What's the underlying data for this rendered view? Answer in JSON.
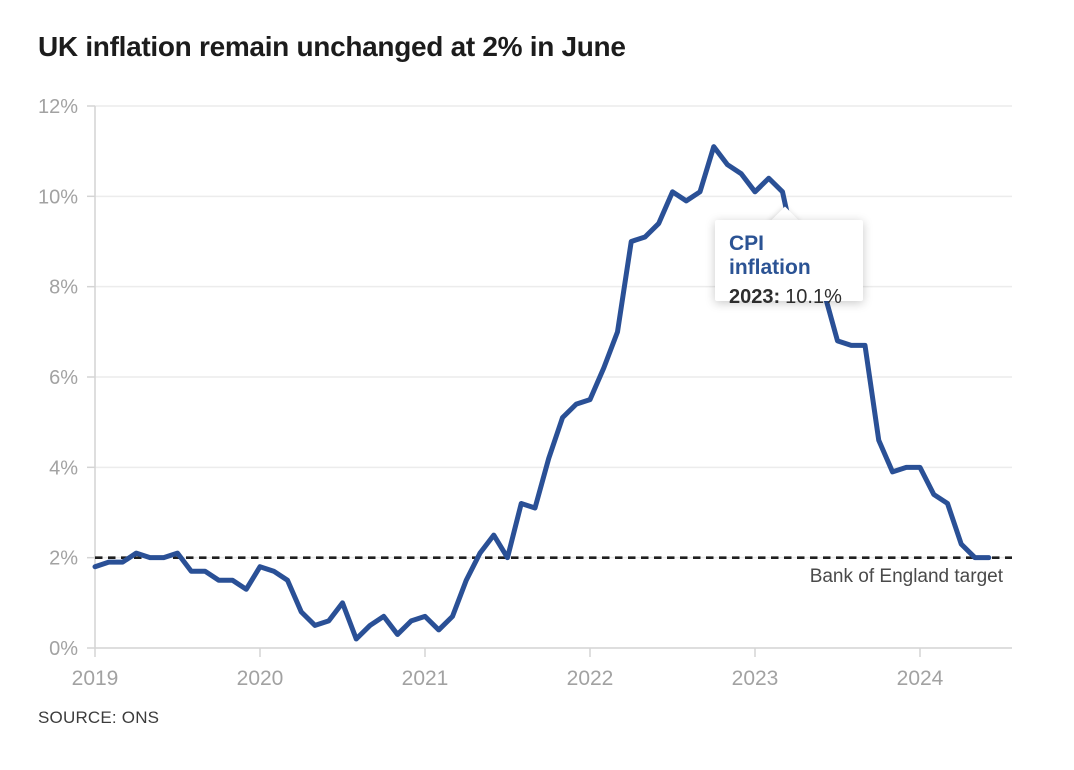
{
  "header": {
    "title": "UK inflation remain unchanged at 2% in June"
  },
  "source": {
    "label": "SOURCE: ONS"
  },
  "tooltip": {
    "series_label": "CPI inflation",
    "year_label": "2023:",
    "value_label": "10.1%"
  },
  "target": {
    "label": "Bank of England target",
    "value": 2
  },
  "colors": {
    "line": "#2a5096",
    "tooltip_title": "#2b5394",
    "target_line": "#1f1f1f",
    "axis_label": "#a2a2a2",
    "gridline": "#ececec",
    "axis_line": "#d4d4d4",
    "title_text": "#1c1c1c"
  },
  "chart_data": {
    "type": "line",
    "title": "UK inflation remain unchanged at 2% in June",
    "xlabel": "",
    "ylabel": "",
    "ylim": [
      0,
      12
    ],
    "y_ticks": [
      0,
      2,
      4,
      6,
      8,
      10,
      12
    ],
    "y_tick_labels": [
      "0%",
      "2%",
      "4%",
      "6%",
      "8%",
      "10%",
      "12%"
    ],
    "x_tick_labels": [
      "2019",
      "2020",
      "2021",
      "2022",
      "2023",
      "2024"
    ],
    "grid": "horizontal",
    "legend": "none",
    "target_line": {
      "value": 2,
      "label": "Bank of England target",
      "style": "dashed"
    },
    "series": [
      {
        "name": "CPI inflation",
        "start_month": "2019-01",
        "end_month": "2024-06",
        "frequency": "monthly",
        "values": [
          1.8,
          1.9,
          1.9,
          2.1,
          2.0,
          2.0,
          2.1,
          1.7,
          1.7,
          1.5,
          1.5,
          1.3,
          1.8,
          1.7,
          1.5,
          0.8,
          0.5,
          0.6,
          1.0,
          0.2,
          0.5,
          0.7,
          0.3,
          0.6,
          0.7,
          0.4,
          0.7,
          1.5,
          2.1,
          2.5,
          2.0,
          3.2,
          3.1,
          4.2,
          5.1,
          5.4,
          5.5,
          6.2,
          7.0,
          9.0,
          9.1,
          9.4,
          10.1,
          9.9,
          10.1,
          11.1,
          10.7,
          10.5,
          10.1,
          10.4,
          10.1,
          8.7,
          8.7,
          7.9,
          6.8,
          6.7,
          6.7,
          4.6,
          3.9,
          4.0,
          4.0,
          3.4,
          3.2,
          2.3,
          2.0,
          2.0
        ]
      }
    ],
    "annotation": {
      "label": "CPI inflation",
      "x": "2023-03",
      "text": "2023: 10.1%"
    }
  }
}
